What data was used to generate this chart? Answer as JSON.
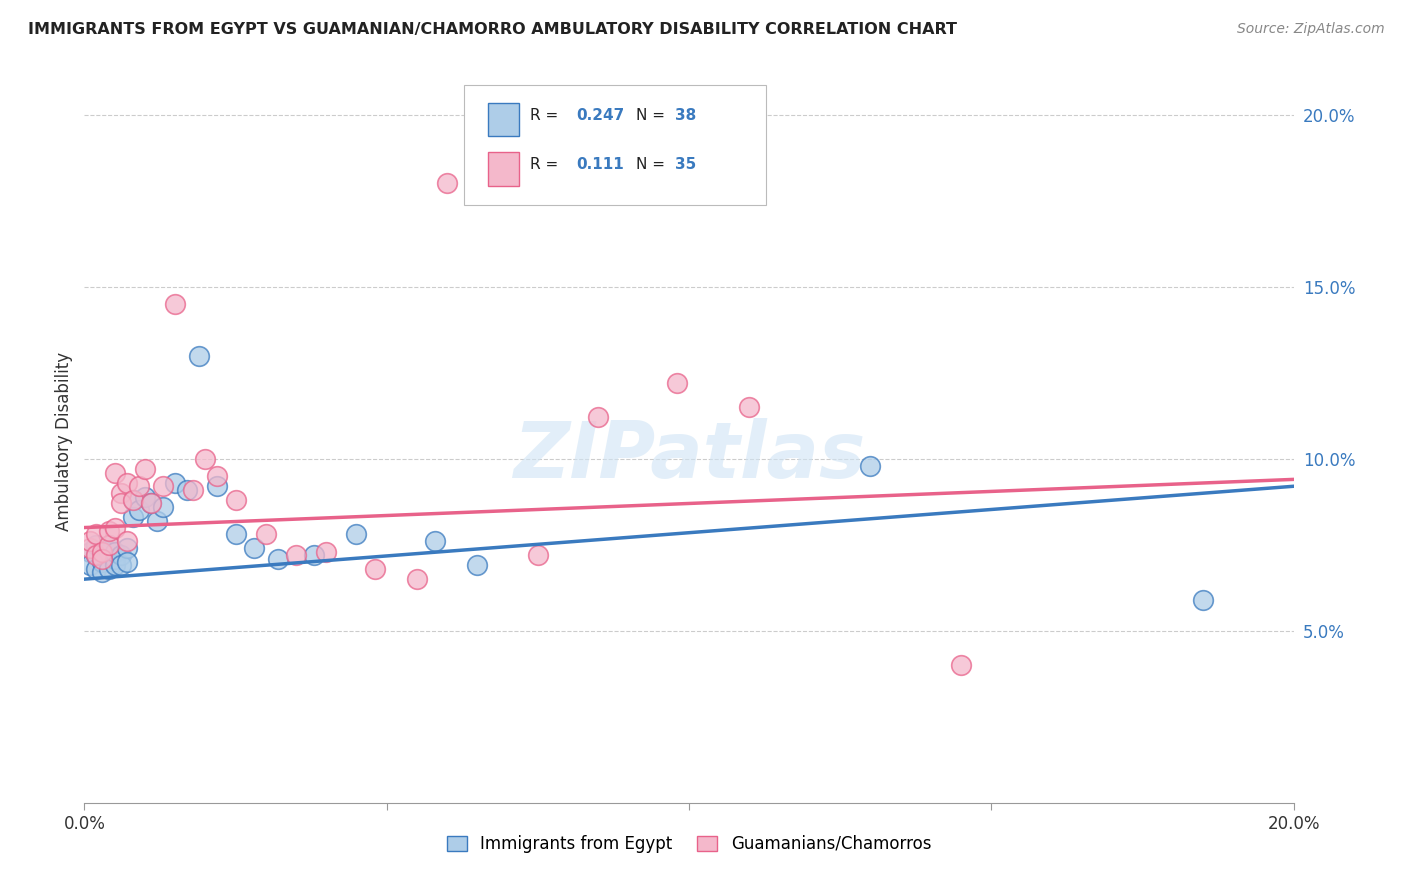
{
  "title": "IMMIGRANTS FROM EGYPT VS GUAMANIAN/CHAMORRO AMBULATORY DISABILITY CORRELATION CHART",
  "source": "Source: ZipAtlas.com",
  "ylabel": "Ambulatory Disability",
  "xlim": [
    0.0,
    0.2
  ],
  "ylim": [
    0.0,
    0.21
  ],
  "yticks": [
    0.05,
    0.1,
    0.15,
    0.2
  ],
  "ytick_labels": [
    "5.0%",
    "10.0%",
    "15.0%",
    "20.0%"
  ],
  "xticks": [
    0.0,
    0.05,
    0.1,
    0.15,
    0.2
  ],
  "xtick_labels": [
    "0.0%",
    "",
    "",
    "",
    "20.0%"
  ],
  "legend1_R": "0.247",
  "legend1_N": "38",
  "legend2_R": "0.111",
  "legend2_N": "35",
  "blue_color": "#aecde8",
  "pink_color": "#f4b8cb",
  "line_blue": "#3a7abf",
  "line_pink": "#e8628a",
  "background": "#ffffff",
  "blue_line_start": 0.065,
  "blue_line_end": 0.092,
  "pink_line_start": 0.08,
  "pink_line_end": 0.094,
  "blue_scatter_x": [
    0.001,
    0.001,
    0.002,
    0.002,
    0.002,
    0.003,
    0.003,
    0.003,
    0.004,
    0.004,
    0.004,
    0.005,
    0.005,
    0.005,
    0.006,
    0.006,
    0.007,
    0.007,
    0.008,
    0.008,
    0.009,
    0.01,
    0.011,
    0.012,
    0.013,
    0.015,
    0.017,
    0.019,
    0.022,
    0.025,
    0.028,
    0.032,
    0.038,
    0.045,
    0.058,
    0.065,
    0.13,
    0.185
  ],
  "blue_scatter_y": [
    0.073,
    0.069,
    0.072,
    0.068,
    0.075,
    0.072,
    0.07,
    0.067,
    0.073,
    0.068,
    0.075,
    0.071,
    0.069,
    0.073,
    0.072,
    0.069,
    0.074,
    0.07,
    0.088,
    0.083,
    0.085,
    0.089,
    0.087,
    0.082,
    0.086,
    0.093,
    0.091,
    0.13,
    0.092,
    0.078,
    0.074,
    0.071,
    0.072,
    0.078,
    0.076,
    0.069,
    0.098,
    0.059
  ],
  "pink_scatter_x": [
    0.001,
    0.001,
    0.002,
    0.002,
    0.003,
    0.003,
    0.004,
    0.004,
    0.005,
    0.005,
    0.006,
    0.006,
    0.007,
    0.007,
    0.008,
    0.009,
    0.01,
    0.011,
    0.013,
    0.015,
    0.018,
    0.02,
    0.022,
    0.025,
    0.03,
    0.035,
    0.04,
    0.048,
    0.055,
    0.06,
    0.075,
    0.085,
    0.098,
    0.11,
    0.145
  ],
  "pink_scatter_y": [
    0.074,
    0.076,
    0.072,
    0.078,
    0.073,
    0.071,
    0.075,
    0.079,
    0.08,
    0.096,
    0.09,
    0.087,
    0.093,
    0.076,
    0.088,
    0.092,
    0.097,
    0.087,
    0.092,
    0.145,
    0.091,
    0.1,
    0.095,
    0.088,
    0.078,
    0.072,
    0.073,
    0.068,
    0.065,
    0.18,
    0.072,
    0.112,
    0.122,
    0.115,
    0.04
  ]
}
